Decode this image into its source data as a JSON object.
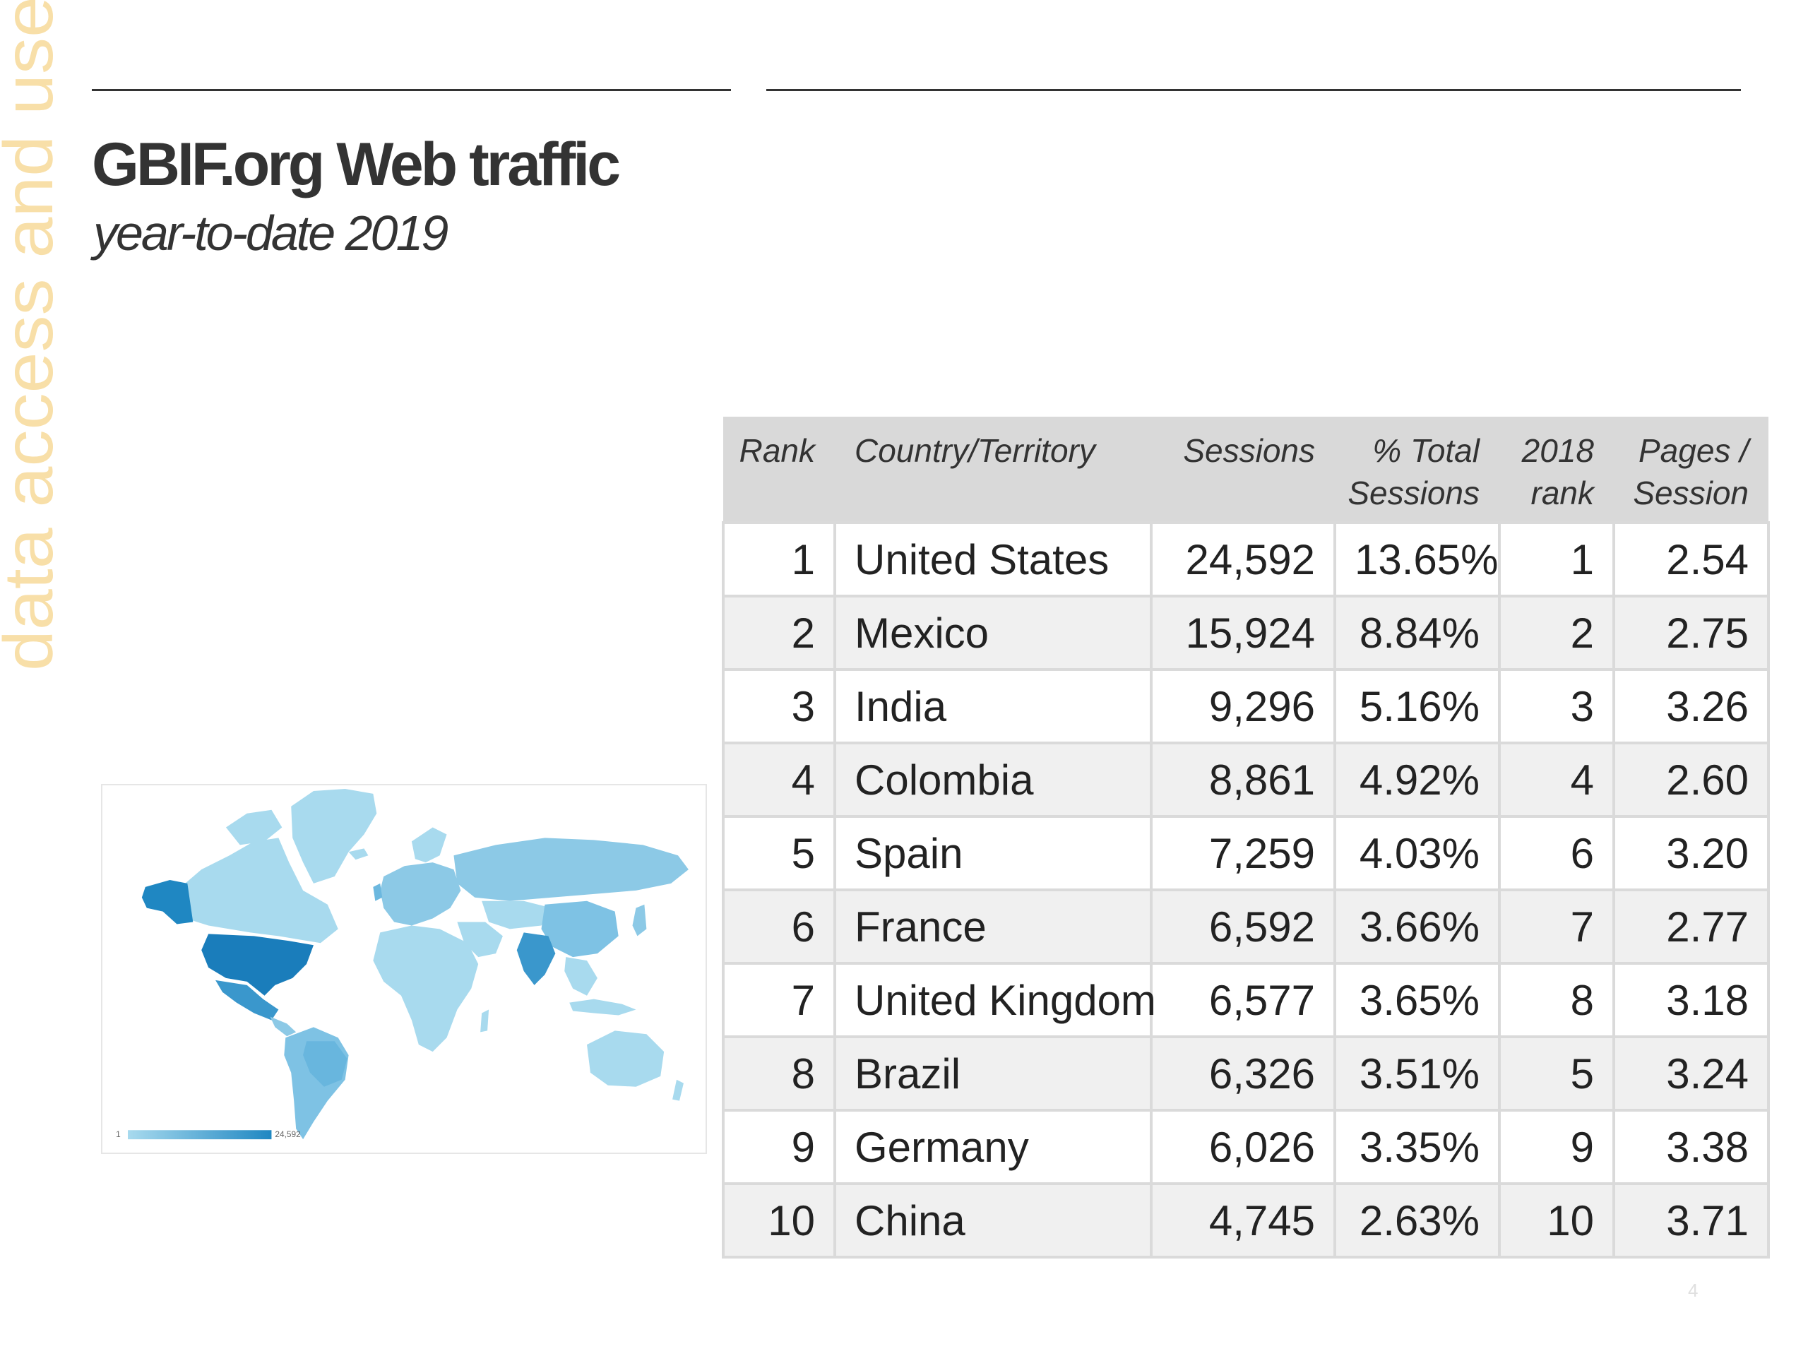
{
  "side_label": "data access and use",
  "title": "GBIF.org Web traffic",
  "subtitle": "year-to-date 2019",
  "map": {
    "legend_min": "1",
    "legend_max": "24,592",
    "colors": {
      "low": "#a8daee",
      "high": "#1f87c2"
    }
  },
  "table": {
    "headers": {
      "rank": "Rank",
      "country": "Country/Territory",
      "sessions": "Sessions",
      "pct_line1": "% Total",
      "pct_line2": "Sessions",
      "rank2018_line1": "2018",
      "rank2018_line2": "rank",
      "pages_line1": "Pages /",
      "pages_line2": "Session"
    },
    "rows": [
      {
        "rank": "1",
        "country": "United States",
        "sessions": "24,592",
        "pct": "13.65%",
        "rank2018": "1",
        "pages": "2.54"
      },
      {
        "rank": "2",
        "country": "Mexico",
        "sessions": "15,924",
        "pct": "8.84%",
        "rank2018": "2",
        "pages": "2.75"
      },
      {
        "rank": "3",
        "country": "India",
        "sessions": "9,296",
        "pct": "5.16%",
        "rank2018": "3",
        "pages": "3.26"
      },
      {
        "rank": "4",
        "country": "Colombia",
        "sessions": "8,861",
        "pct": "4.92%",
        "rank2018": "4",
        "pages": "2.60"
      },
      {
        "rank": "5",
        "country": "Spain",
        "sessions": "7,259",
        "pct": "4.03%",
        "rank2018": "6",
        "pages": "3.20"
      },
      {
        "rank": "6",
        "country": "France",
        "sessions": "6,592",
        "pct": "3.66%",
        "rank2018": "7",
        "pages": "2.77"
      },
      {
        "rank": "7",
        "country": "United Kingdom",
        "sessions": "6,577",
        "pct": "3.65%",
        "rank2018": "8",
        "pages": "3.18"
      },
      {
        "rank": "8",
        "country": "Brazil",
        "sessions": "6,326",
        "pct": "3.51%",
        "rank2018": "5",
        "pages": "3.24"
      },
      {
        "rank": "9",
        "country": "Germany",
        "sessions": "6,026",
        "pct": "3.35%",
        "rank2018": "9",
        "pages": "3.38"
      },
      {
        "rank": "10",
        "country": "China",
        "sessions": "4,745",
        "pct": "2.63%",
        "rank2018": "10",
        "pages": "3.71"
      }
    ]
  },
  "page_number": "4",
  "colors": {
    "accent_side_label": "#f8dfa8",
    "text": "#333333",
    "header_bg": "#d9d9d9",
    "row_alt": "#f0f0f0"
  }
}
